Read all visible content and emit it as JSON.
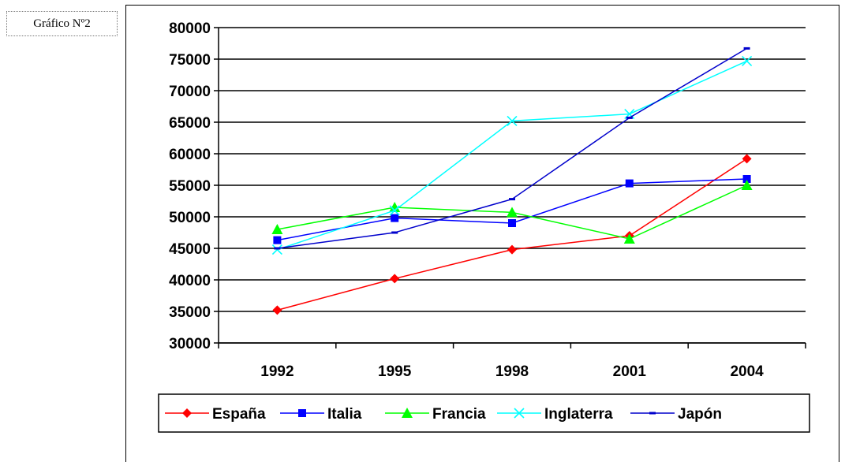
{
  "caption": "Gráfico Nº2",
  "chart_data": {
    "type": "line",
    "categories": [
      "1992",
      "1995",
      "1998",
      "2001",
      "2004"
    ],
    "ylim": [
      30000,
      80000
    ],
    "yticks": [
      "30000",
      "35000",
      "40000",
      "45000",
      "50000",
      "55000",
      "60000",
      "65000",
      "70000",
      "75000",
      "80000"
    ],
    "grid": true,
    "legend_position": "bottom",
    "series": [
      {
        "name": "España",
        "color": "#ff0000",
        "marker": "diamond",
        "values": [
          35200,
          40200,
          44800,
          47000,
          59200
        ]
      },
      {
        "name": "Italia",
        "color": "#0000ff",
        "marker": "square",
        "values": [
          46300,
          49800,
          49000,
          55300,
          56000
        ]
      },
      {
        "name": "Francia",
        "color": "#00ff00",
        "marker": "triangle",
        "values": [
          48000,
          51500,
          50700,
          46500,
          55000
        ]
      },
      {
        "name": "Inglaterra",
        "color": "#00ffff",
        "marker": "x",
        "values": [
          44800,
          51000,
          65200,
          66300,
          74700
        ]
      },
      {
        "name": "Japón",
        "color": "#0000cc",
        "marker": "dash",
        "values": [
          45000,
          47500,
          52800,
          65700,
          76700
        ]
      }
    ]
  }
}
